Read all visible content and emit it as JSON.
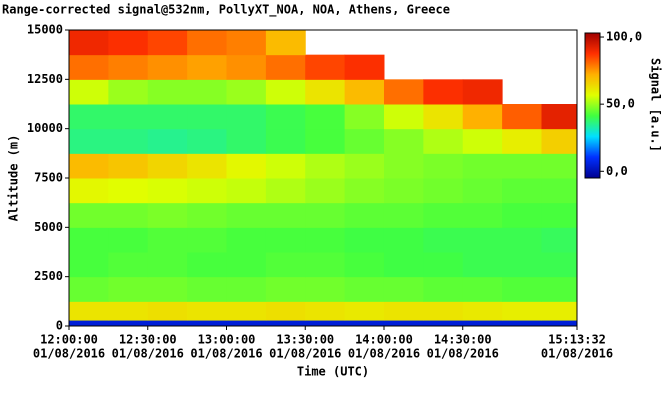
{
  "chart_data": {
    "type": "heatmap",
    "title": "Range-corrected signal@532nm, PollyXT_NOA, NOA, Athens, Greece",
    "x_label": "Time (UTC)",
    "y_label": "Altitude (m)",
    "colorbar_label": "Signal [a.u.]",
    "x": [
      0,
      15,
      30,
      45,
      60,
      75,
      90,
      105,
      120,
      135,
      150,
      165,
      180,
      193.53
    ],
    "y": [
      0,
      300,
      1250,
      2500,
      3750,
      5000,
      6250,
      7500,
      8750,
      10000,
      11250,
      12500,
      13750,
      15000
    ],
    "values": [
      [
        5,
        5,
        5,
        5,
        5,
        5,
        5,
        5,
        5,
        5,
        5,
        5,
        5
      ],
      [
        62,
        62,
        63,
        62,
        62,
        63,
        62,
        61,
        62,
        62,
        61,
        60,
        60
      ],
      [
        45,
        46,
        46,
        45,
        45,
        46,
        46,
        45,
        45,
        44,
        44,
        43,
        43
      ],
      [
        42,
        43,
        43,
        42,
        42,
        43,
        43,
        42,
        41,
        41,
        40,
        40,
        40
      ],
      [
        42,
        42,
        43,
        43,
        42,
        42,
        42,
        41,
        41,
        40,
        40,
        40,
        39
      ],
      [
        46,
        46,
        47,
        46,
        45,
        45,
        45,
        44,
        44,
        43,
        43,
        42,
        42
      ],
      [
        58,
        57,
        56,
        55,
        54,
        52,
        50,
        48,
        47,
        46,
        45,
        44,
        44
      ],
      [
        70,
        68,
        65,
        62,
        58,
        55,
        52,
        50,
        48,
        47,
        46,
        46,
        46
      ],
      [
        36,
        36,
        35,
        36,
        38,
        40,
        42,
        45,
        48,
        52,
        55,
        60,
        66
      ],
      [
        38,
        38,
        38,
        38,
        38,
        40,
        42,
        48,
        55,
        62,
        72,
        82,
        92
      ],
      [
        55,
        50,
        48,
        48,
        50,
        55,
        62,
        70,
        80,
        88,
        90,
        null,
        null
      ],
      [
        80,
        78,
        76,
        74,
        76,
        80,
        85,
        88,
        null,
        null,
        null,
        null,
        null
      ],
      [
        90,
        88,
        85,
        80,
        78,
        70,
        null,
        null,
        null,
        null,
        null,
        null,
        null
      ]
    ],
    "xlim": [
      0,
      193.53
    ],
    "xticks": [
      {
        "value": 0,
        "label": "12:00:00",
        "date": "01/08/2016"
      },
      {
        "value": 30,
        "label": "12:30:00",
        "date": "01/08/2016"
      },
      {
        "value": 60,
        "label": "13:00:00",
        "date": "01/08/2016"
      },
      {
        "value": 90,
        "label": "13:30:00",
        "date": "01/08/2016"
      },
      {
        "value": 120,
        "label": "14:00:00",
        "date": "01/08/2016"
      },
      {
        "value": 150,
        "label": "14:30:00",
        "date": "01/08/2016"
      },
      {
        "value": 193.53,
        "label": "15:13:32",
        "date": "01/08/2016"
      }
    ],
    "ylim": [
      0,
      15000
    ],
    "yticks": [
      0,
      2500,
      5000,
      7500,
      10000,
      12500,
      15000
    ],
    "clim": [
      -5,
      103
    ],
    "cticks": [
      {
        "value": 0,
        "label": "0,0"
      },
      {
        "value": 50,
        "label": "50,0"
      },
      {
        "value": 100,
        "label": "100,0"
      }
    ],
    "colormap": [
      "#000090",
      "#0030ff",
      "#00e0ff",
      "#40ff40",
      "#e0ff00",
      "#ffb000",
      "#ff3000",
      "#a00000"
    ]
  }
}
